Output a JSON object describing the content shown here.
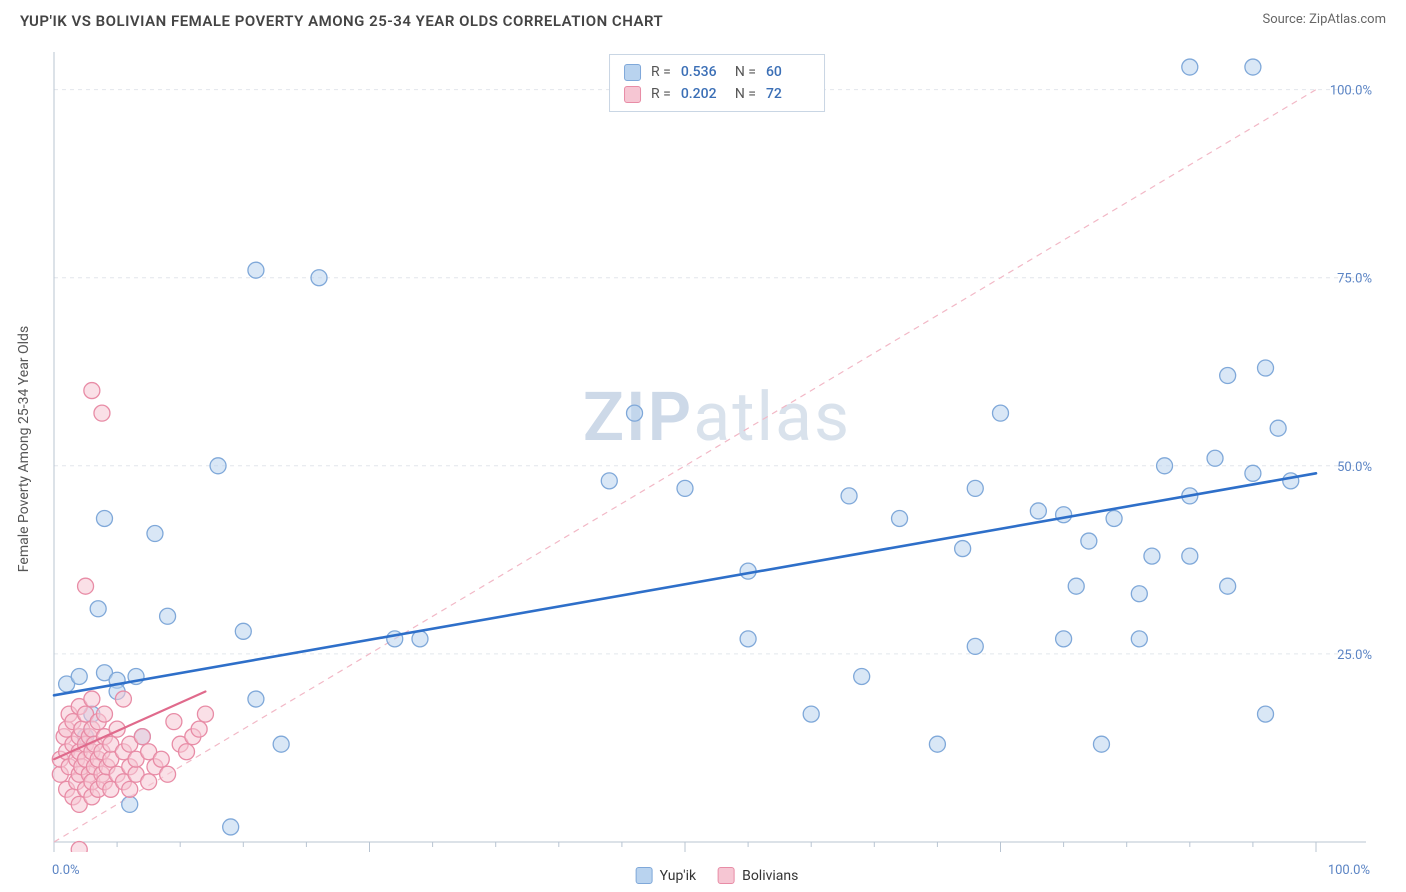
{
  "header": {
    "title": "YUP'IK VS BOLIVIAN FEMALE POVERTY AMONG 25-34 YEAR OLDS CORRELATION CHART",
    "source": "Source: ZipAtlas.com"
  },
  "watermark": {
    "zip": "ZIP",
    "atlas": "atlas"
  },
  "chart": {
    "type": "scatter",
    "ylabel": "Female Poverty Among 25-34 Year Olds",
    "xlim": [
      0,
      100
    ],
    "ylim": [
      0,
      105
    ],
    "background_color": "#ffffff",
    "grid_color": "#e2e6ec",
    "grid_dash": "4,4",
    "axis_color": "#b8c4d2",
    "tick_color": "#b8c4d2",
    "xticks": [
      0,
      25,
      50,
      75,
      100
    ],
    "yticks": [
      25,
      50,
      75,
      100
    ],
    "xtick_labels": [
      "0.0%",
      "",
      "",
      "",
      "100.0%"
    ],
    "ytick_labels": [
      "25.0%",
      "50.0%",
      "75.0%",
      "100.0%"
    ],
    "label_color": "#5b84c4",
    "label_fontsize": 13,
    "identity_line": {
      "color": "#f2b8c6",
      "dash": "6,5",
      "width": 1.2,
      "from": [
        0,
        0
      ],
      "to": [
        100,
        100
      ]
    },
    "series": [
      {
        "name": "Yup'ik",
        "marker_fill": "#b9d3ef",
        "marker_stroke": "#7fa8d9",
        "marker_fill_opacity": 0.55,
        "marker_radius": 8,
        "regression": {
          "from": [
            0,
            19.5
          ],
          "to": [
            100,
            49
          ],
          "color": "#2e6fc9",
          "width": 2.6
        },
        "R": "0.536",
        "N": "60",
        "points": [
          [
            1,
            21
          ],
          [
            2,
            22
          ],
          [
            2.5,
            14
          ],
          [
            3,
            17
          ],
          [
            3.5,
            31
          ],
          [
            4,
            22.5
          ],
          [
            4,
            43
          ],
          [
            5,
            21.5
          ],
          [
            5,
            20
          ],
          [
            6,
            5
          ],
          [
            6.5,
            22
          ],
          [
            7,
            14
          ],
          [
            8,
            41
          ],
          [
            9,
            30
          ],
          [
            13,
            50
          ],
          [
            14,
            2
          ],
          [
            15,
            28
          ],
          [
            16,
            19
          ],
          [
            16,
            76
          ],
          [
            18,
            13
          ],
          [
            21,
            75
          ],
          [
            27,
            27
          ],
          [
            29,
            27
          ],
          [
            44,
            48
          ],
          [
            46,
            57
          ],
          [
            50,
            47
          ],
          [
            55,
            36
          ],
          [
            55,
            27
          ],
          [
            60,
            17
          ],
          [
            63,
            46
          ],
          [
            64,
            22
          ],
          [
            67,
            43
          ],
          [
            70,
            13
          ],
          [
            72,
            39
          ],
          [
            73,
            47
          ],
          [
            73,
            26
          ],
          [
            75,
            57
          ],
          [
            78,
            44
          ],
          [
            80,
            27
          ],
          [
            80,
            43.5
          ],
          [
            81,
            34
          ],
          [
            82,
            40
          ],
          [
            83,
            13
          ],
          [
            84,
            43
          ],
          [
            86,
            33
          ],
          [
            86,
            27
          ],
          [
            87,
            38
          ],
          [
            88,
            50
          ],
          [
            90,
            103
          ],
          [
            90,
            38
          ],
          [
            90,
            46
          ],
          [
            92,
            51
          ],
          [
            93,
            34
          ],
          [
            93,
            62
          ],
          [
            95,
            103
          ],
          [
            95,
            49
          ],
          [
            96,
            17
          ],
          [
            96,
            63
          ],
          [
            97,
            55
          ],
          [
            98,
            48
          ]
        ]
      },
      {
        "name": "Bolivians",
        "marker_fill": "#f6c6d3",
        "marker_stroke": "#e88ca6",
        "marker_fill_opacity": 0.55,
        "marker_radius": 8,
        "regression": {
          "from": [
            0,
            11
          ],
          "to": [
            12,
            20
          ],
          "color": "#e06a8c",
          "width": 2.2
        },
        "R": "0.202",
        "N": "72",
        "points": [
          [
            0.5,
            9
          ],
          [
            0.5,
            11
          ],
          [
            0.8,
            14
          ],
          [
            1,
            7
          ],
          [
            1,
            12
          ],
          [
            1,
            15
          ],
          [
            1.2,
            10
          ],
          [
            1.2,
            17
          ],
          [
            1.5,
            6
          ],
          [
            1.5,
            13
          ],
          [
            1.5,
            16
          ],
          [
            1.8,
            8
          ],
          [
            1.8,
            11
          ],
          [
            2,
            5
          ],
          [
            2,
            9
          ],
          [
            2,
            12
          ],
          [
            2,
            14
          ],
          [
            2,
            18
          ],
          [
            2,
            -1
          ],
          [
            2.2,
            10
          ],
          [
            2.2,
            15
          ],
          [
            2.5,
            7
          ],
          [
            2.5,
            11
          ],
          [
            2.5,
            13
          ],
          [
            2.5,
            17
          ],
          [
            2.5,
            34
          ],
          [
            2.8,
            9
          ],
          [
            2.8,
            14
          ],
          [
            3,
            60
          ],
          [
            3,
            6
          ],
          [
            3,
            8
          ],
          [
            3,
            12
          ],
          [
            3,
            15
          ],
          [
            3,
            19
          ],
          [
            3.2,
            10
          ],
          [
            3.2,
            13
          ],
          [
            3.5,
            7
          ],
          [
            3.5,
            11
          ],
          [
            3.5,
            16
          ],
          [
            3.8,
            57
          ],
          [
            3.8,
            9
          ],
          [
            3.8,
            12
          ],
          [
            4,
            8
          ],
          [
            4,
            14
          ],
          [
            4,
            17
          ],
          [
            4.2,
            10
          ],
          [
            4.5,
            7
          ],
          [
            4.5,
            11
          ],
          [
            4.5,
            13
          ],
          [
            5,
            9
          ],
          [
            5,
            15
          ],
          [
            5,
            -3
          ],
          [
            5.5,
            8
          ],
          [
            5.5,
            12
          ],
          [
            5.5,
            19
          ],
          [
            6,
            7
          ],
          [
            6,
            10
          ],
          [
            6,
            13
          ],
          [
            6.5,
            9
          ],
          [
            6.5,
            11
          ],
          [
            7,
            14
          ],
          [
            7.5,
            8
          ],
          [
            7.5,
            12
          ],
          [
            8,
            10
          ],
          [
            8.5,
            11
          ],
          [
            9,
            9
          ],
          [
            9.5,
            16
          ],
          [
            10,
            13
          ],
          [
            10.5,
            12
          ],
          [
            11,
            14
          ],
          [
            11.5,
            15
          ],
          [
            12,
            17
          ]
        ]
      }
    ],
    "stats_legend": {
      "border_color": "#c9d6e4",
      "bg": "#ffffff",
      "label_color": "#555555",
      "value_color": "#3b6fb6"
    },
    "bottom_legend": {
      "items": [
        {
          "label": "Yup'ik",
          "fill": "#b9d3ef",
          "stroke": "#7fa8d9"
        },
        {
          "label": "Bolivians",
          "fill": "#f6c6d3",
          "stroke": "#e88ca6"
        }
      ]
    }
  }
}
